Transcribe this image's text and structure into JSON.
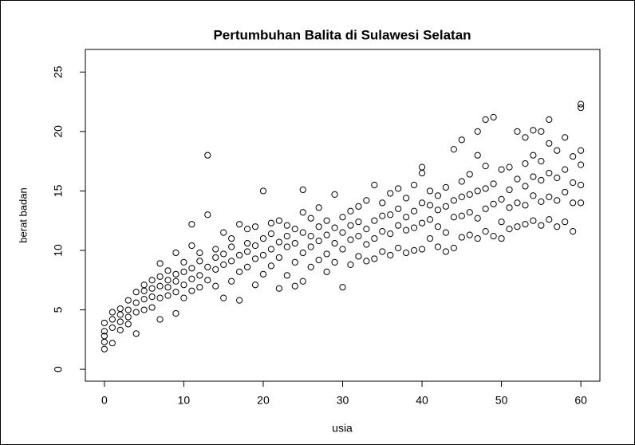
{
  "chart_data": {
    "type": "scatter",
    "title": "Pertumbuhan Balita di Sulawesi Selatan",
    "x_label": "usia",
    "y_label": "berat badan",
    "xlim": [
      -2.4,
      62.4
    ],
    "ylim": [
      -1,
      26.9
    ],
    "xticks": [
      0,
      10,
      20,
      30,
      40,
      50,
      60
    ],
    "yticks": [
      0,
      5,
      10,
      15,
      20,
      25
    ],
    "color": "#000000",
    "x": [
      0,
      0,
      0,
      0,
      0,
      1,
      1,
      1,
      1,
      2,
      2,
      2,
      2,
      3,
      3,
      3,
      3,
      4,
      4,
      4,
      4,
      5,
      5,
      5,
      5,
      6,
      6,
      6,
      6,
      7,
      7,
      7,
      7,
      7,
      8,
      8,
      8,
      8,
      9,
      9,
      9,
      9,
      9,
      10,
      10,
      10,
      10,
      11,
      11,
      11,
      11,
      11,
      12,
      12,
      12,
      12,
      13,
      13,
      13,
      13,
      14,
      14,
      14,
      14,
      15,
      15,
      15,
      15,
      16,
      16,
      16,
      16,
      17,
      17,
      17,
      17,
      18,
      18,
      18,
      18,
      19,
      19,
      19,
      19,
      20,
      20,
      20,
      20,
      21,
      21,
      21,
      21,
      22,
      22,
      22,
      22,
      23,
      23,
      23,
      23,
      24,
      24,
      24,
      24,
      25,
      25,
      25,
      25,
      25,
      26,
      26,
      26,
      26,
      27,
      27,
      27,
      27,
      28,
      28,
      28,
      28,
      29,
      29,
      29,
      29,
      30,
      30,
      30,
      30,
      31,
      31,
      31,
      31,
      32,
      32,
      32,
      32,
      33,
      33,
      33,
      33,
      34,
      34,
      34,
      34,
      35,
      35,
      35,
      35,
      36,
      36,
      36,
      36,
      37,
      37,
      37,
      37,
      38,
      38,
      38,
      38,
      39,
      39,
      39,
      39,
      40,
      40,
      40,
      40,
      40,
      41,
      41,
      41,
      41,
      42,
      42,
      42,
      42,
      43,
      43,
      43,
      43,
      44,
      44,
      44,
      44,
      45,
      45,
      45,
      45,
      45,
      46,
      46,
      46,
      46,
      47,
      47,
      47,
      47,
      47,
      48,
      48,
      48,
      48,
      48,
      49,
      49,
      49,
      49,
      50,
      50,
      50,
      50,
      51,
      51,
      51,
      51,
      52,
      52,
      52,
      52,
      53,
      53,
      53,
      53,
      53,
      54,
      54,
      54,
      54,
      54,
      55,
      55,
      55,
      55,
      55,
      56,
      56,
      56,
      56,
      56,
      57,
      57,
      57,
      57,
      58,
      58,
      58,
      58,
      59,
      59,
      59,
      59,
      60,
      60,
      60,
      60,
      60,
      60
    ],
    "values": [
      1.7,
      2.3,
      2.8,
      3.2,
      3.9,
      2.2,
      3.5,
      4.2,
      4.8,
      3.3,
      4.0,
      4.6,
      5.1,
      3.8,
      4.4,
      5.0,
      5.8,
      3.0,
      4.8,
      5.6,
      6.5,
      5.0,
      5.9,
      6.6,
      7.1,
      5.2,
      6.1,
      6.8,
      7.5,
      4.2,
      6.0,
      7.0,
      7.8,
      8.9,
      6.2,
      6.9,
      7.5,
      8.3,
      4.7,
      6.5,
      7.4,
      8.0,
      9.8,
      6.0,
      7.1,
      8.2,
      9.0,
      6.6,
      7.6,
      8.5,
      10.4,
      12.2,
      6.9,
      7.9,
      9.1,
      9.8,
      7.5,
      8.6,
      13.0,
      18.0,
      7.0,
      8.4,
      9.4,
      10.1,
      6.0,
      8.8,
      9.7,
      11.5,
      7.4,
      9.1,
      10.3,
      11.0,
      5.8,
      8.2,
      9.6,
      12.2,
      8.6,
      9.9,
      10.6,
      11.8,
      7.1,
      9.3,
      10.4,
      12.0,
      8.0,
      9.6,
      11.0,
      15.0,
      8.7,
      10.1,
      11.4,
      12.3,
      6.8,
      9.4,
      10.7,
      12.5,
      7.9,
      10.3,
      11.2,
      12.1,
      7.0,
      9.0,
      10.6,
      11.8,
      7.4,
      9.8,
      11.5,
      13.2,
      15.1,
      8.6,
      10.3,
      11.2,
      12.7,
      9.2,
      10.8,
      12.0,
      13.6,
      8.2,
      9.7,
      11.3,
      12.5,
      9.0,
      10.6,
      11.9,
      14.7,
      6.9,
      10.1,
      11.5,
      12.8,
      8.8,
      10.9,
      12.1,
      13.3,
      9.5,
      11.2,
      12.4,
      13.7,
      9.1,
      10.5,
      11.8,
      14.2,
      9.3,
      11.0,
      12.5,
      15.5,
      9.9,
      11.6,
      12.9,
      14.0,
      9.6,
      11.4,
      13.0,
      14.8,
      10.2,
      12.1,
      13.5,
      15.2,
      9.8,
      11.7,
      12.8,
      14.4,
      10.0,
      11.9,
      13.3,
      15.5,
      10.1,
      12.3,
      14.0,
      16.5,
      17.0,
      11.0,
      12.6,
      13.8,
      15.0,
      10.3,
      12.0,
      13.4,
      14.6,
      9.9,
      11.5,
      13.7,
      15.3,
      10.2,
      12.8,
      14.2,
      18.5,
      11.1,
      12.9,
      14.5,
      15.8,
      19.3,
      11.3,
      13.2,
      14.7,
      16.4,
      11.0,
      12.7,
      15.0,
      18.0,
      20.0,
      11.6,
      13.5,
      15.2,
      17.1,
      21.0,
      11.2,
      13.9,
      15.6,
      21.2,
      11.0,
      12.4,
      14.3,
      16.8,
      11.8,
      13.6,
      15.1,
      17.0,
      12.0,
      14.0,
      16.0,
      20.0,
      12.2,
      13.8,
      15.4,
      17.3,
      19.5,
      12.5,
      14.6,
      16.2,
      18.0,
      20.1,
      12.1,
      14.1,
      15.9,
      17.5,
      20.0,
      12.6,
      14.5,
      16.5,
      19.0,
      21.0,
      12.0,
      14.2,
      16.1,
      18.4,
      12.4,
      14.9,
      16.8,
      19.5,
      11.6,
      14.0,
      15.7,
      17.9,
      14.0,
      15.5,
      17.2,
      18.4,
      22.0,
      22.3
    ]
  }
}
